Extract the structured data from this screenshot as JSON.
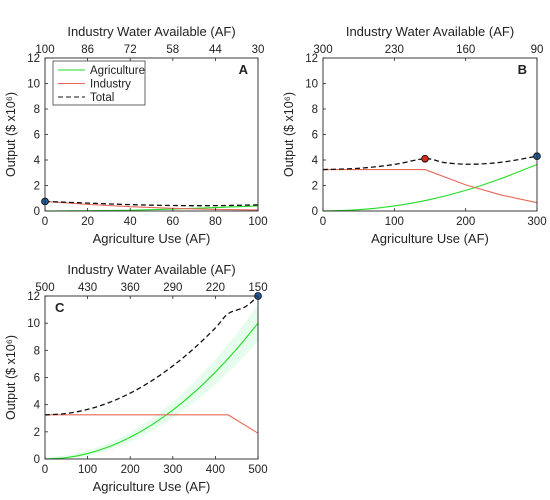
{
  "colors": {
    "agriculture": "#22dd22",
    "industry": "#e8685a",
    "total": "#111111",
    "point_blue": "#1f5fa8",
    "point_red": "#d42a1a",
    "axis": "#262626",
    "band": "#b6f5c9"
  },
  "chart_data": [
    {
      "panel": "A",
      "type": "line",
      "title": "",
      "xlabel": "Agriculture Use (AF)",
      "ylabel": "Output ($ x10⁶)",
      "top_xlabel": "Industry Water Available (AF)",
      "xlim": [
        0,
        100
      ],
      "ylim": [
        0,
        12
      ],
      "xticks": [
        0,
        20,
        40,
        60,
        80,
        100
      ],
      "yticks": [
        0,
        2,
        4,
        6,
        8,
        10,
        12
      ],
      "top_ticks": [
        100,
        86,
        72,
        58,
        44,
        30
      ],
      "legend": {
        "position": "top-left",
        "entries": [
          "Agriculture",
          "Industry",
          "Total"
        ]
      },
      "series": [
        {
          "name": "Agriculture",
          "style": "solid",
          "x": [
            0,
            20,
            40,
            60,
            80,
            100
          ],
          "y": [
            0.0,
            0.02,
            0.06,
            0.15,
            0.27,
            0.4
          ]
        },
        {
          "name": "Industry",
          "style": "solid",
          "x": [
            0,
            20,
            40,
            60,
            80,
            100
          ],
          "y": [
            0.75,
            0.52,
            0.34,
            0.21,
            0.12,
            0.08
          ]
        },
        {
          "name": "Total",
          "style": "dashed",
          "x": [
            0,
            20,
            40,
            60,
            80,
            100
          ],
          "y": [
            0.75,
            0.62,
            0.5,
            0.43,
            0.42,
            0.48
          ]
        }
      ],
      "points": [
        {
          "x": 0,
          "y": 0.75,
          "color": "blue"
        }
      ]
    },
    {
      "panel": "B",
      "type": "line",
      "title": "",
      "xlabel": "Agriculture Use (AF)",
      "ylabel": "Output ($ x10⁶)",
      "top_xlabel": "Industry Water Available (AF)",
      "xlim": [
        0,
        300
      ],
      "ylim": [
        0,
        12
      ],
      "xticks": [
        0,
        100,
        200,
        300
      ],
      "yticks": [
        0,
        2,
        4,
        6,
        8,
        10,
        12
      ],
      "top_ticks": [
        300,
        230,
        160,
        90
      ],
      "series": [
        {
          "name": "Agriculture",
          "style": "solid",
          "x": [
            0,
            50,
            100,
            150,
            200,
            250,
            300
          ],
          "y": [
            0.0,
            0.1,
            0.4,
            0.9,
            1.62,
            2.55,
            3.65
          ]
        },
        {
          "name": "Industry",
          "style": "solid",
          "x": [
            0,
            50,
            100,
            143,
            200,
            250,
            300
          ],
          "y": [
            3.25,
            3.25,
            3.25,
            3.25,
            2.05,
            1.25,
            0.65
          ]
        },
        {
          "name": "Total",
          "style": "dashed",
          "x": [
            0,
            50,
            100,
            143,
            170,
            200,
            230,
            260,
            300
          ],
          "y": [
            3.25,
            3.35,
            3.65,
            4.1,
            3.8,
            3.67,
            3.72,
            3.9,
            4.3
          ]
        }
      ],
      "points": [
        {
          "x": 143,
          "y": 4.1,
          "color": "red"
        },
        {
          "x": 300,
          "y": 4.3,
          "color": "blue"
        }
      ]
    },
    {
      "panel": "C",
      "type": "line",
      "title": "",
      "xlabel": "Agriculture Use (AF)",
      "ylabel": "Output ($ x10⁶)",
      "top_xlabel": "Industry Water Available (AF)",
      "xlim": [
        0,
        500
      ],
      "ylim": [
        0,
        12
      ],
      "xticks": [
        0,
        100,
        200,
        300,
        400,
        500
      ],
      "yticks": [
        0,
        2,
        4,
        6,
        8,
        10,
        12
      ],
      "top_ticks": [
        500,
        430,
        360,
        290,
        220,
        150
      ],
      "series": [
        {
          "name": "Agriculture",
          "style": "solid",
          "x": [
            0,
            50,
            100,
            150,
            200,
            250,
            300,
            350,
            400,
            450,
            500
          ],
          "y": [
            0.0,
            0.1,
            0.4,
            0.9,
            1.6,
            2.5,
            3.6,
            4.9,
            6.4,
            8.1,
            10.0
          ]
        },
        {
          "name": "Industry",
          "style": "solid",
          "x": [
            0,
            100,
            200,
            300,
            430,
            500
          ],
          "y": [
            3.25,
            3.25,
            3.25,
            3.25,
            3.25,
            1.9
          ]
        },
        {
          "name": "Total",
          "style": "dashed",
          "x": [
            0,
            50,
            100,
            150,
            200,
            250,
            300,
            350,
            400,
            430,
            470,
            500
          ],
          "y": [
            3.25,
            3.35,
            3.65,
            4.15,
            4.85,
            5.75,
            6.85,
            8.15,
            9.65,
            10.7,
            11.2,
            12.0
          ]
        }
      ],
      "points": [
        {
          "x": 500,
          "y": 12.0,
          "color": "blue"
        }
      ]
    }
  ]
}
